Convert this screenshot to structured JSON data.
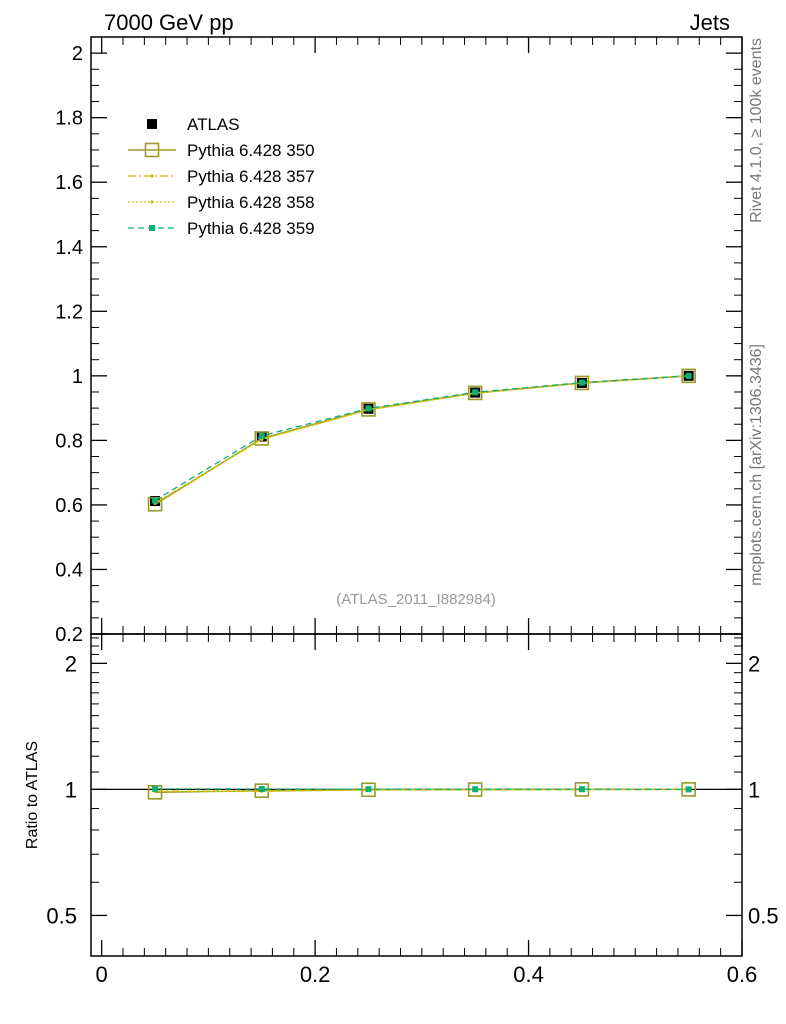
{
  "header": {
    "left": "7000 GeV pp",
    "right": "Jets"
  },
  "side_labels": {
    "rivet": "Rivet 4.1.0, ≥ 100k events",
    "mcplots": "mcplots.cern.ch [arXiv:1306.3436]"
  },
  "colors": {
    "data": "#000000",
    "s350": "#9a9a2a",
    "s357": "#d8b000",
    "s358": "#c8c820",
    "s359": "#10b070",
    "frame": "#000000",
    "watermark": "#999999"
  },
  "chart_data": [
    {
      "type": "line",
      "panel": "main",
      "title": "",
      "watermark": "(ATLAS_2011_I882984)",
      "xlabel": "",
      "ylabel": "",
      "xlim": [
        -0.01,
        0.6
      ],
      "ylim": [
        0.2,
        2.05
      ],
      "yticks": [
        0.2,
        0.4,
        0.6,
        0.8,
        1,
        1.2,
        1.4,
        1.6,
        1.8,
        2
      ],
      "ytick_labels": [
        "0.2",
        "0.4",
        "0.6",
        "0.8",
        "1",
        "1.2",
        "1.4",
        "1.6",
        "1.8",
        "2"
      ],
      "x": [
        0.05,
        0.15,
        0.25,
        0.35,
        0.45,
        0.55
      ],
      "legend_position": "top-left",
      "series": [
        {
          "name": "ATLAS",
          "key": "data",
          "values": [
            0.612,
            0.812,
            0.898,
            0.948,
            0.978,
            1.0
          ]
        },
        {
          "name": "Pythia 6.428 350",
          "key": "s350",
          "values": [
            0.602,
            0.806,
            0.896,
            0.947,
            0.978,
            1.0
          ]
        },
        {
          "name": "Pythia 6.428 357",
          "key": "s357",
          "values": [
            0.606,
            0.804,
            0.895,
            0.946,
            0.977,
            1.0
          ]
        },
        {
          "name": "Pythia 6.428 358",
          "key": "s358",
          "values": [
            0.605,
            0.803,
            0.894,
            0.946,
            0.977,
            1.0
          ]
        },
        {
          "name": "Pythia 6.428 359",
          "key": "s359",
          "values": [
            0.614,
            0.814,
            0.899,
            0.949,
            0.979,
            1.0
          ]
        }
      ]
    },
    {
      "type": "line",
      "panel": "ratio",
      "ylabel": "Ratio to ATLAS",
      "xlim": [
        -0.01,
        0.6
      ],
      "ylim": [
        0.4,
        2.35
      ],
      "yscale": "log",
      "yticks": [
        0.5,
        1,
        2
      ],
      "ytick_labels": [
        "0.5",
        "1",
        "2"
      ],
      "xticks": [
        0,
        0.2,
        0.4,
        0.6
      ],
      "xtick_labels": [
        "0",
        "0.2",
        "0.4",
        "0.6"
      ],
      "x": [
        0.05,
        0.15,
        0.25,
        0.35,
        0.45,
        0.55
      ],
      "series": [
        {
          "name": "Pythia 6.428 350",
          "key": "s350",
          "values": [
            0.984,
            0.993,
            0.998,
            0.999,
            1.0,
            1.0
          ]
        },
        {
          "name": "Pythia 6.428 357",
          "key": "s357",
          "values": [
            0.99,
            0.99,
            0.997,
            0.998,
            0.999,
            1.0
          ]
        },
        {
          "name": "Pythia 6.428 358",
          "key": "s358",
          "values": [
            0.988,
            0.989,
            0.996,
            0.998,
            0.999,
            1.0
          ]
        },
        {
          "name": "Pythia 6.428 359",
          "key": "s359",
          "values": [
            1.003,
            1.002,
            1.001,
            1.001,
            1.001,
            1.0
          ]
        }
      ]
    }
  ]
}
